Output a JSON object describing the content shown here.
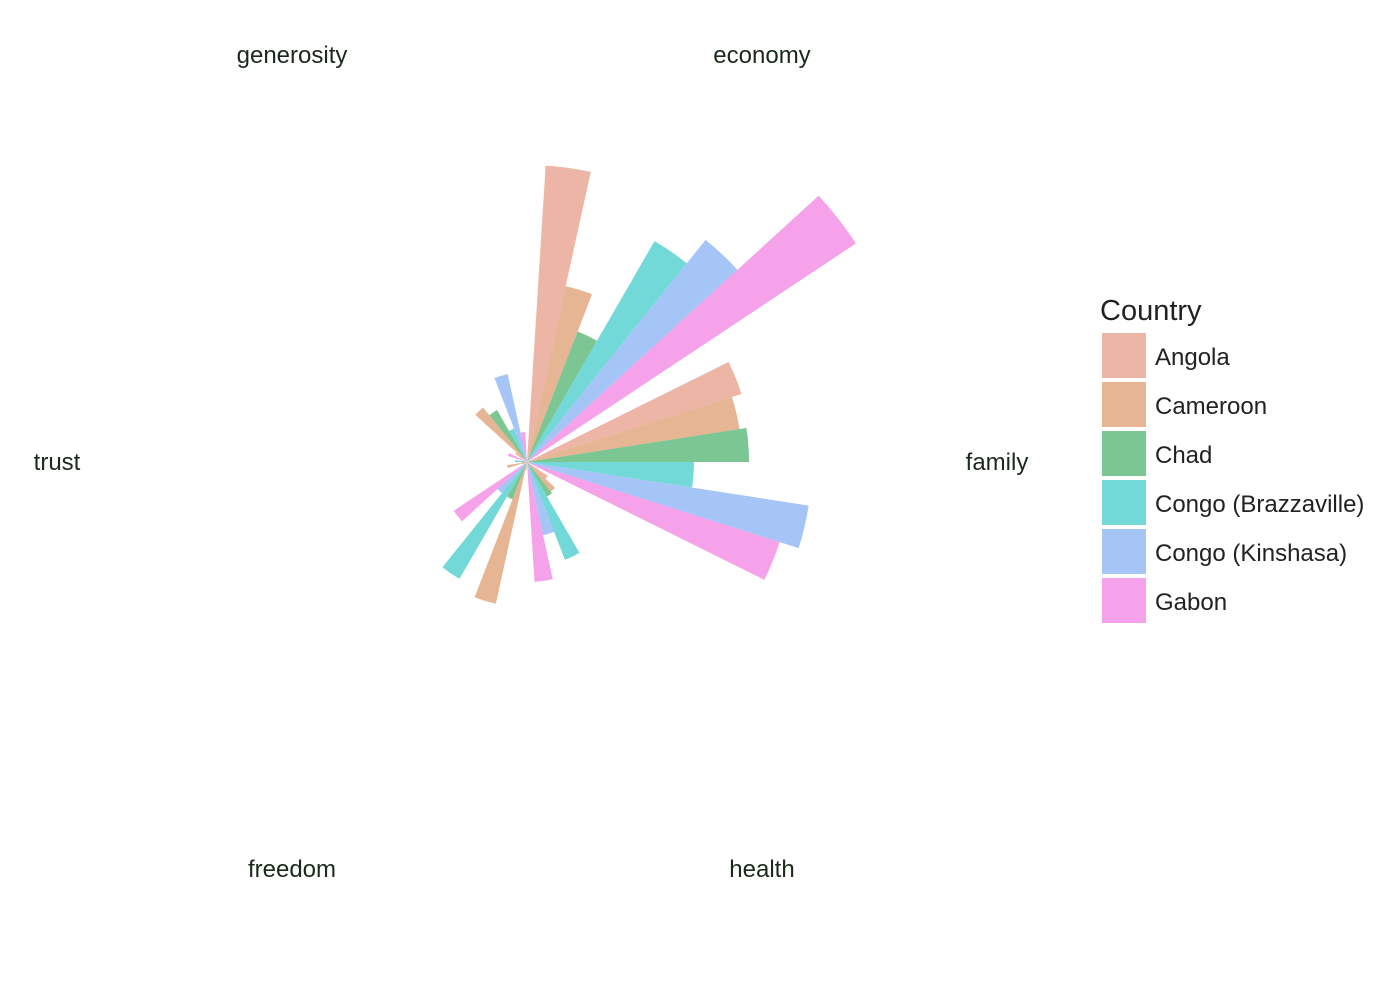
{
  "chart_data": {
    "type": "radial-bar",
    "title": "",
    "categories": [
      "economy",
      "family",
      "health",
      "freedom",
      "trust",
      "generosity"
    ],
    "series": [
      {
        "name": "Angola",
        "color": "#e8a592",
        "values": [
          297,
          225,
          25,
          8,
          5,
          14
        ]
      },
      {
        "name": "Cameroon",
        "color": "#dfa57d",
        "values": [
          180,
          215,
          38,
          145,
          20,
          70
        ]
      },
      {
        "name": "Chad",
        "color": "#5fba7d",
        "values": [
          140,
          222,
          40,
          40,
          5,
          60
        ]
      },
      {
        "name": "Congo (Brazzaville)",
        "color": "#54d0d0",
        "values": [
          255,
          167,
          105,
          135,
          12,
          36
        ]
      },
      {
        "name": "Congo (Kinshasa)",
        "color": "#91b8f5",
        "values": [
          285,
          285,
          75,
          40,
          5,
          90
        ]
      },
      {
        "name": "Gabon",
        "color": "#f48ee6",
        "values": [
          395,
          265,
          120,
          88,
          20,
          30
        ]
      }
    ],
    "legend": {
      "title": "Country",
      "position": "right"
    },
    "grid": false
  }
}
